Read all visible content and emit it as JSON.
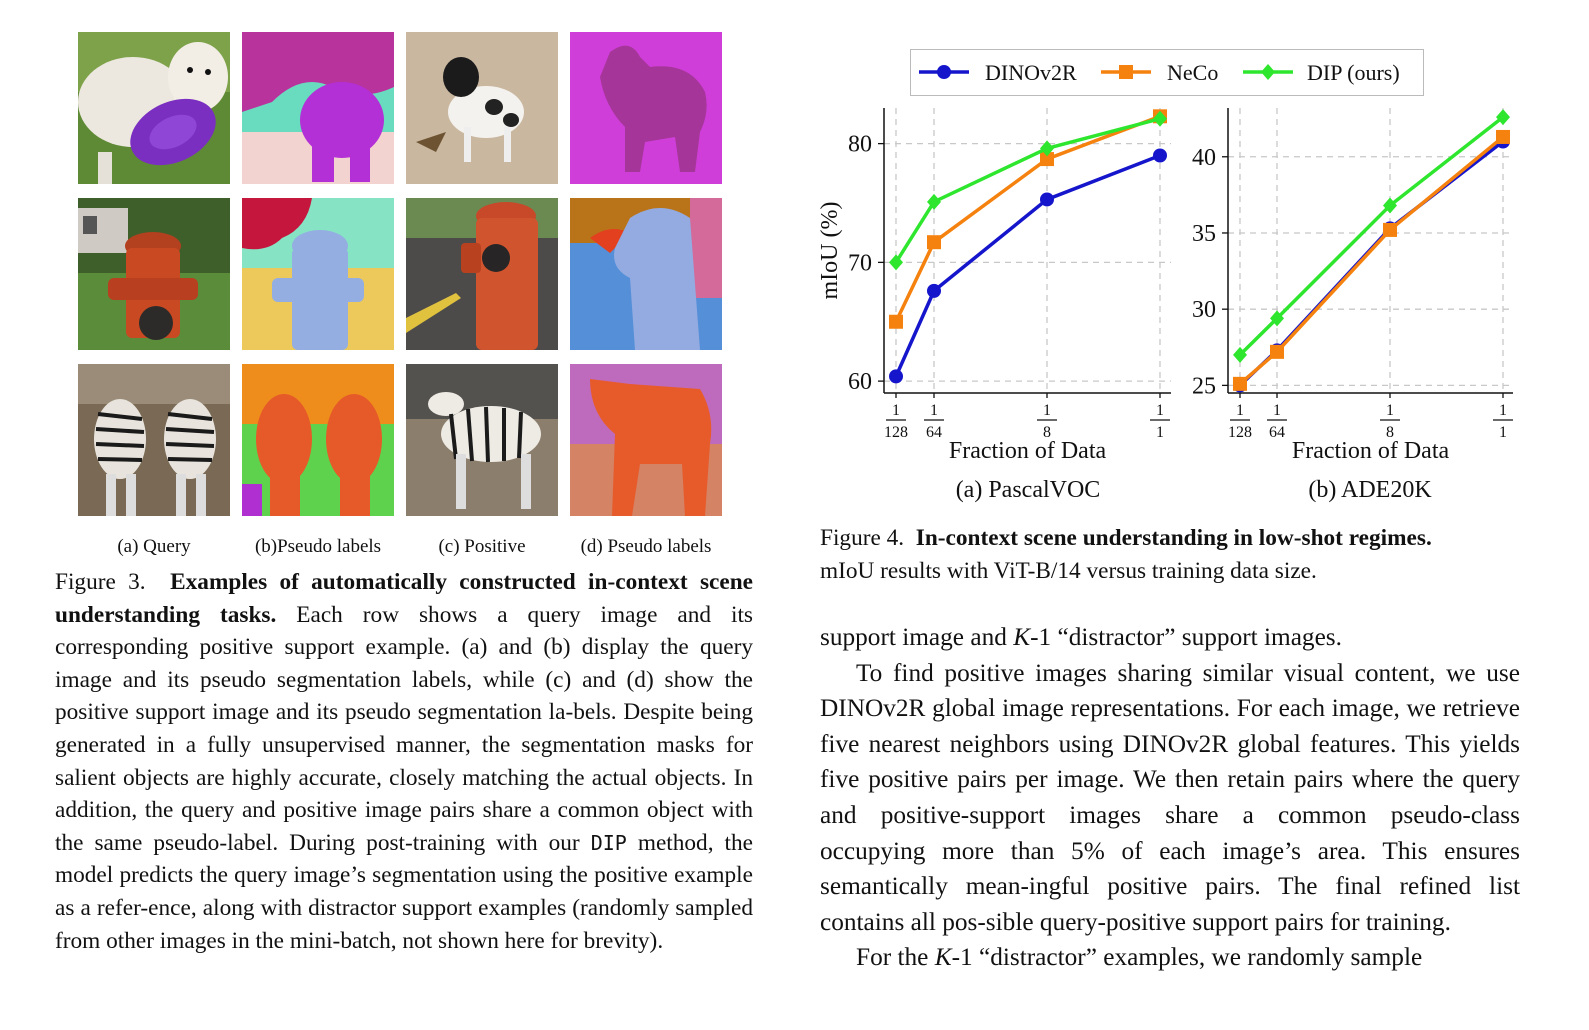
{
  "figure3": {
    "subcaptions": [
      "(a) Query",
      "(b)Pseudo labels",
      "(c) Positive",
      "(d) Pseudo labels"
    ],
    "caption_label": "Figure 3.",
    "caption_title": "Examples of automatically constructed in-context scene understanding tasks.",
    "caption_body_1": "Each row shows a query image and its corresponding positive support example. (a) and (b) display the query image and its pseudo segmentation labels, while (c) and (d) show the positive support image and its pseudo segmentation la-bels. Despite being generated in a fully unsupervised manner, the segmentation masks for salient objects are highly accurate, closely matching the actual objects. In addition, the query and positive image pairs share a common object with the same pseudo-label. During post-training with our",
    "caption_code": "DIP",
    "caption_body_2": "method, the model predicts the query image’s segmentation using the positive example as a refer-ence, along with distractor support examples (randomly sampled from other images in the mini-batch, not shown here for brevity)."
  },
  "figure4": {
    "caption_label": "Figure 4.",
    "caption_title": "In-context scene understanding in low-shot regimes.",
    "caption_body": "mIoU results with ViT-B/14 versus training data size.",
    "legend": [
      "DINOv2R",
      "NeCo",
      "DIP (ours)"
    ],
    "subcaptions": [
      "(a) PascalVOC",
      "(b) ADE20K"
    ]
  },
  "chart_data": [
    {
      "type": "line",
      "subtitle": "(a) PascalVOC",
      "xlabel": "Fraction of Data",
      "ylabel": "mIoU (%)",
      "x": [
        "1/128",
        "1/64",
        "1/8",
        "1/1"
      ],
      "ylim": [
        59,
        83
      ],
      "yticks": [
        60,
        70,
        80
      ],
      "grid": true,
      "legend_position": "top",
      "series": [
        {
          "name": "DINOv2R",
          "color": "#1515cc",
          "marker": "circle",
          "values": [
            60.4,
            67.6,
            75.3,
            79
          ]
        },
        {
          "name": "NeCo",
          "color": "#f5820f",
          "marker": "square",
          "values": [
            65,
            71.7,
            78.7,
            82.3
          ]
        },
        {
          "name": "DIP (ours)",
          "color": "#2fe62f",
          "marker": "diamond",
          "values": [
            70,
            75.1,
            79.6,
            82.1
          ]
        }
      ]
    },
    {
      "type": "line",
      "subtitle": "(b) ADE20K",
      "xlabel": "Fraction of Data",
      "ylabel": "",
      "x": [
        "1/128",
        "1/64",
        "1/8",
        "1/1"
      ],
      "ylim": [
        24.5,
        43.2
      ],
      "yticks": [
        25,
        30,
        35,
        40
      ],
      "grid": true,
      "series": [
        {
          "name": "DINOv2R",
          "color": "#1515cc",
          "marker": "circle",
          "values": [
            25,
            27.3,
            35.3,
            41
          ]
        },
        {
          "name": "NeCo",
          "color": "#f5820f",
          "marker": "square",
          "values": [
            25.1,
            27.2,
            35.2,
            41.3
          ]
        },
        {
          "name": "DIP (ours)",
          "color": "#2fe62f",
          "marker": "diamond",
          "values": [
            27,
            29.4,
            36.8,
            42.6
          ]
        }
      ]
    }
  ],
  "body_right": {
    "p0": "support image and ",
    "p0_var": "K",
    "p0_rest": "-1 “distractor” support images.",
    "p1": "To find positive images sharing similar visual content, we use DINOv2R global image representations. For each image, we retrieve five nearest neighbors using DINOv2R global features. This yields five positive pairs per image. We then retain pairs where the query and positive-support images share a common pseudo-class occupying more than 5% of each image’s area. This ensures semantically mean-ingful positive pairs. The final refined list contains all pos-sible query-positive support pairs for training.",
    "p2_a": "For the ",
    "p2_var": "K",
    "p2_b": "-1 “distractor” examples, we randomly sample"
  }
}
